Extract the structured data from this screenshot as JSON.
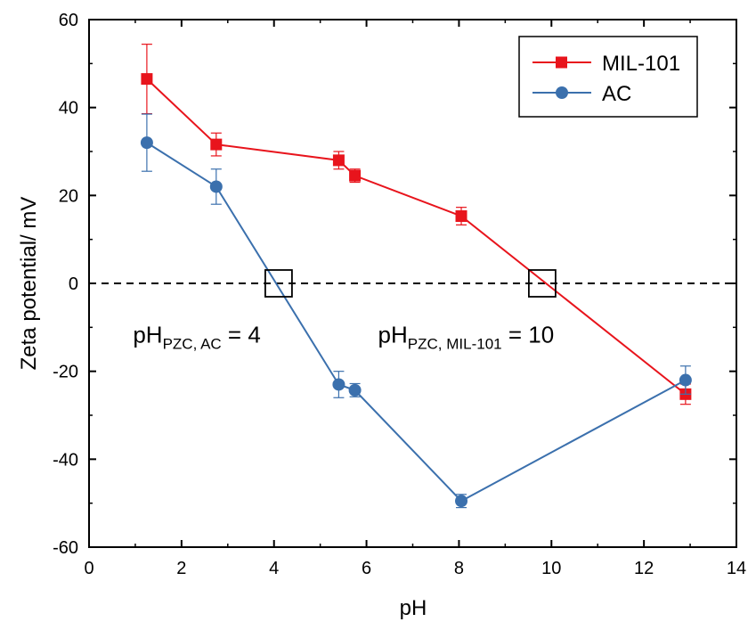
{
  "chart_data": {
    "type": "line",
    "xlabel": "pH",
    "ylabel": "Zeta potential/ mV",
    "xlim": [
      0,
      14
    ],
    "ylim": [
      -60,
      60
    ],
    "xticks": [
      0,
      2,
      4,
      6,
      8,
      10,
      12,
      14
    ],
    "yticks": [
      -60,
      -40,
      -20,
      0,
      20,
      40,
      60
    ],
    "grid": false,
    "legend_position": "top-right",
    "reference_line": {
      "y": 0,
      "style": "dashed"
    },
    "series": [
      {
        "name": "MIL-101",
        "color": "#e8141c",
        "marker": "square",
        "x": [
          1.25,
          2.75,
          5.4,
          5.75,
          8.05,
          12.9
        ],
        "y": [
          46.5,
          31.6,
          28.0,
          24.5,
          15.3,
          -25.2
        ],
        "err": [
          7.9,
          2.6,
          2.0,
          1.5,
          2.0,
          2.3
        ]
      },
      {
        "name": "AC",
        "color": "#3b70ad",
        "marker": "circle",
        "x": [
          1.25,
          2.75,
          5.4,
          5.75,
          8.05,
          12.9
        ],
        "y": [
          32.0,
          22.0,
          -23.0,
          -24.3,
          -49.5,
          -22.0
        ],
        "err": [
          6.5,
          4.0,
          3.0,
          1.5,
          1.5,
          3.2
        ]
      }
    ],
    "annotations": [
      {
        "main": "pH",
        "sub": "PZC, AC",
        "tail": " = 4",
        "x": 0.95,
        "y": -11.5
      },
      {
        "main": "pH",
        "sub": "PZC, MIL-101",
        "tail": " = 10",
        "x": 6.25,
        "y": -11.5
      }
    ],
    "zero_crossings": [
      {
        "x": 4.1,
        "y": 0
      },
      {
        "x": 9.8,
        "y": 0
      }
    ]
  }
}
